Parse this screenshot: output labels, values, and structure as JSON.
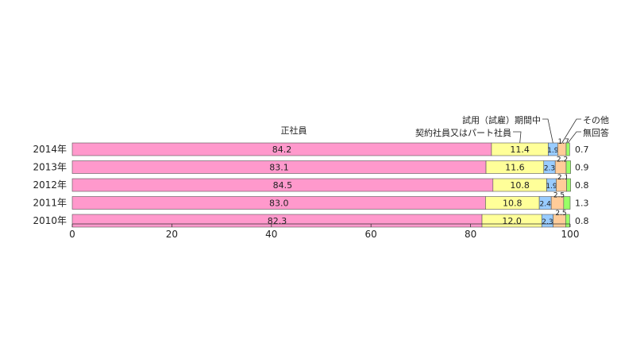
{
  "chart_data": {
    "type": "bar",
    "orientation": "horizontal",
    "stacked": true,
    "categories": [
      "2014年",
      "2013年",
      "2012年",
      "2011年",
      "2010年"
    ],
    "series": [
      {
        "name": "正社員",
        "values": [
          84.2,
          83.1,
          84.5,
          83.0,
          82.3
        ],
        "color": "#FF99CC"
      },
      {
        "name": "契約社員又はパート社員",
        "values": [
          11.4,
          11.6,
          10.8,
          10.8,
          12.0
        ],
        "color": "#FFFF99"
      },
      {
        "name": "試用（試雇）期間中",
        "values": [
          1.9,
          2.3,
          1.9,
          2.4,
          2.3
        ],
        "color": "#99CCFF"
      },
      {
        "name": "その他",
        "values": [
          1.7,
          2.2,
          2.1,
          2.5,
          2.5
        ],
        "color": "#FFCC99"
      },
      {
        "name": "無回答",
        "values": [
          0.7,
          0.9,
          0.8,
          1.3,
          0.8
        ],
        "color": "#99FF66"
      }
    ],
    "xlim": [
      0,
      100
    ],
    "xticks": [
      "0",
      "20",
      "40",
      "60",
      "80",
      "100"
    ],
    "grid": false
  }
}
